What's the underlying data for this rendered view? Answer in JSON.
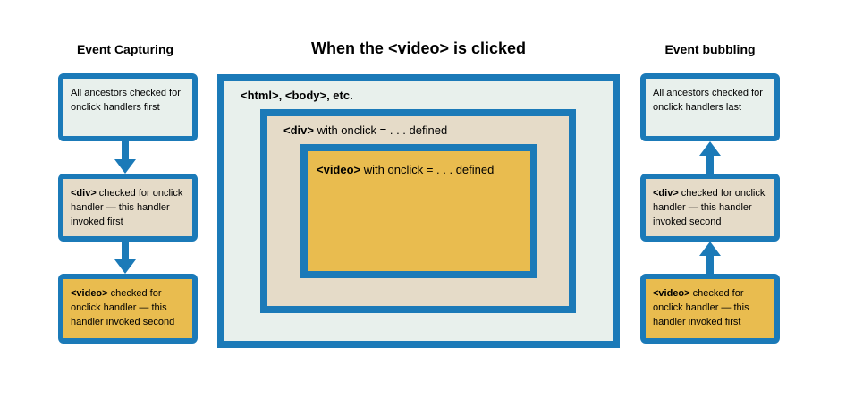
{
  "headings": {
    "capturing": "Event Capturing",
    "main": "When the <video> is clicked",
    "bubbling": "Event bubbling"
  },
  "capturing": [
    {
      "strong": "",
      "text": "All ancestors checked for onclick handlers first"
    },
    {
      "strong": "<div>",
      "text": " checked for onclick handler — this handler invoked first"
    },
    {
      "strong": "<video>",
      "text": " checked for onclick handler — this handler invoked second"
    }
  ],
  "bubbling": [
    {
      "strong": "",
      "text": "All ancestors checked for onclick handlers last"
    },
    {
      "strong": "<div>",
      "text": " checked for onclick handler — this handler invoked second"
    },
    {
      "strong": "<video>",
      "text": " checked for onclick handler — this handler invoked first"
    }
  ],
  "nested": {
    "html": {
      "strong": "<html>, <body>, etc.",
      "text": ""
    },
    "div": {
      "strong": "<div>",
      "text": " with onclick = . . . defined"
    },
    "video": {
      "strong": "<video>",
      "text": " with onclick = . . . defined"
    }
  },
  "colors": {
    "border": "#1b7ab8",
    "ancestor_fill": "#e8f0ec",
    "div_fill": "#e5dbc8",
    "video_fill": "#e9bc4f"
  }
}
